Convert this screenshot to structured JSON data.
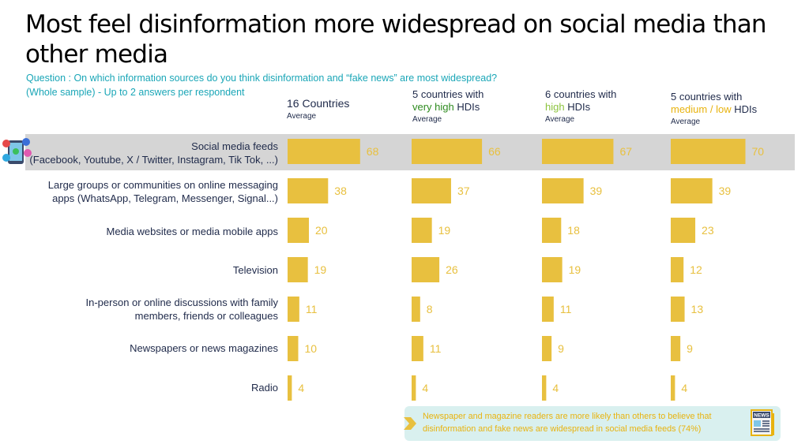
{
  "title": "Most feel disinformation more widespread on social media than other media",
  "question": "Question : On which information sources do you think disinformation and “fake news” are most widespread?",
  "sample": "(Whole sample) - Up to 2 answers per respondent",
  "columns": [
    {
      "line1": "16 Countries",
      "line2a": "",
      "line2b": "",
      "line2c": "",
      "sub": "Average"
    },
    {
      "line1": "5 countries with",
      "line2a": "very high",
      "line2b": " HDIs",
      "line2c": "",
      "sub": "Average"
    },
    {
      "line1": "6 countries with",
      "line2a": "high",
      "line2b": " HDIs",
      "line2c": "",
      "sub": "Average"
    },
    {
      "line1": "5 countries with",
      "line2a": "medium / low",
      "line2b": " HDIs",
      "line2c": "",
      "sub": "Average"
    }
  ],
  "rows": [
    {
      "line1": "Social media feeds",
      "line2": "(Facebook, Youtube, X / Twitter, Instagram, Tik Tok, ...)"
    },
    {
      "line1": "Large groups or communities on online messaging",
      "line2": "apps (WhatsApp, Telegram, Messenger, Signal...)"
    },
    {
      "line1": "Media websites or media mobile apps",
      "line2": ""
    },
    {
      "line1": "Television",
      "line2": ""
    },
    {
      "line1": "In-person or online discussions with family",
      "line2": "members, friends or colleagues"
    },
    {
      "line1": "Newspapers or news magazines",
      "line2": ""
    },
    {
      "line1": "Radio",
      "line2": ""
    }
  ],
  "note": "Newspaper and magazine readers are more likely than others to believe that disinformation and fake news are widespread in social media feeds (74%)",
  "news_icon_text": "NEWS",
  "colors": {
    "bar": "#e8c03f",
    "label": "#e8c03f",
    "band": "#d5d5d5",
    "accent": "#1aa6b7"
  },
  "chart_data": {
    "type": "bar",
    "orientation": "horizontal",
    "categories": [
      "Social media feeds (Facebook, Youtube, X / Twitter, Instagram, Tik Tok, ...)",
      "Large groups or communities on online messaging apps (WhatsApp, Telegram, Messenger, Signal...)",
      "Media websites or media mobile apps",
      "Television",
      "In-person or online discussions with family members, friends or colleagues",
      "Newspapers or news magazines",
      "Radio"
    ],
    "series": [
      {
        "name": "16 Countries",
        "values": [
          68,
          38,
          20,
          19,
          11,
          10,
          4
        ]
      },
      {
        "name": "5 countries with very high HDIs",
        "values": [
          66,
          37,
          19,
          26,
          8,
          11,
          4
        ]
      },
      {
        "name": "6 countries with high HDIs",
        "values": [
          67,
          39,
          18,
          19,
          11,
          9,
          4
        ]
      },
      {
        "name": "5 countries with medium / low HDIs",
        "values": [
          70,
          39,
          23,
          12,
          13,
          9,
          4
        ]
      }
    ],
    "xlim": [
      0,
      100
    ],
    "grid": false
  }
}
